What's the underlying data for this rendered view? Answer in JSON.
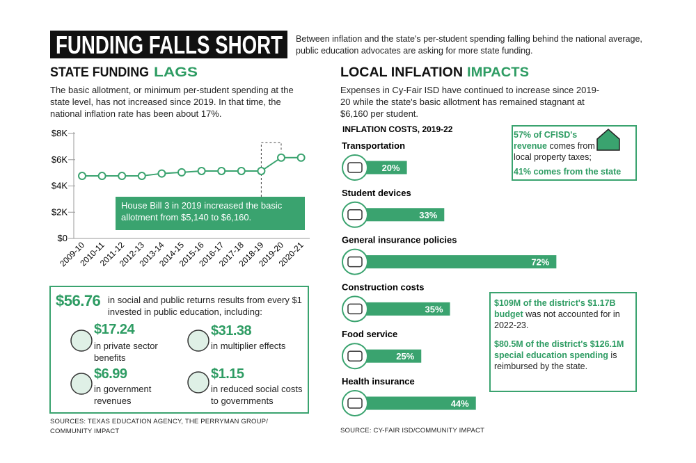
{
  "header": {
    "title": "FUNDING FALLS SHORT",
    "intro": "Between inflation and the state's per-student spending falling behind the national average, public education advocates are asking for more state funding."
  },
  "left": {
    "heading_main": "STATE FUNDING",
    "heading_accent": "LAGS",
    "text": "The basic allotment, or minimum per-student spending at the state level, has not increased since 2019. In that time, the national inflation rate has been about 17%."
  },
  "right": {
    "heading_main": "LOCAL INFLATION",
    "heading_accent": "IMPACTS",
    "text": "Expenses in Cy-Fair ISD have continued to increase since 2019-20 while the state's basic allotment has remained stagnant at $6,160 per student."
  },
  "chart_data": [
    {
      "type": "line",
      "categories": [
        "2009-10",
        "2010-11",
        "2011-12",
        "2012-13",
        "2013-14",
        "2014-15",
        "2015-16",
        "2016-17",
        "2017-18",
        "2018-19",
        "2019-20",
        "2020-21"
      ],
      "values": [
        4765,
        4765,
        4765,
        4765,
        4950,
        5040,
        5140,
        5140,
        5140,
        5140,
        6160,
        6160
      ],
      "color": "#3aa36f",
      "ylim": [
        0,
        8000
      ],
      "yticks": [
        {
          "value": 0,
          "label": "$0"
        },
        {
          "value": 2000,
          "label": "$2K"
        },
        {
          "value": 4000,
          "label": "$4K"
        },
        {
          "value": 6000,
          "label": "$6K"
        },
        {
          "value": 8000,
          "label": "$8K"
        }
      ],
      "annotation": "House Bill 3 in 2019 increased the basic allotment from $5,140 to $6,160."
    },
    {
      "type": "hbar",
      "title": "INFLATION COSTS, 2019-22",
      "categories": [
        "Transportation",
        "Student devices",
        "General insurance policies",
        "Construction costs",
        "Food service",
        "Health insurance"
      ],
      "values": [
        20,
        33,
        72,
        35,
        25,
        44
      ],
      "value_labels": [
        "20%",
        "33%",
        "72%",
        "35%",
        "25%",
        "44%"
      ],
      "color": "#3aa36f",
      "xlim": [
        0,
        100
      ]
    }
  ],
  "returns": {
    "headline_value": "$56.76",
    "headline_text": "in social and public returns results from every $1 invested in public education, including:",
    "items": [
      {
        "value": "$17.24",
        "text": "in private sector benefits"
      },
      {
        "value": "$31.38",
        "text": "in multiplier effects"
      },
      {
        "value": "$6.99",
        "text": "in government revenues"
      },
      {
        "value": "$1.15",
        "text": "in reduced social costs to governments"
      }
    ]
  },
  "callouts": [
    {
      "parts": [
        "57% of CFISD's revenue",
        "comes from local property taxes;",
        "41% comes from the state"
      ]
    },
    {
      "parts": [
        "$109M of the district's $1.17B budget",
        "was not accounted for in 2022-23.",
        "$80.5M of the district's $126.1M special education spending",
        "is reimbursed by the state."
      ]
    }
  ],
  "sources": [
    "SOURCES: TEXAS EDUCATION AGENCY, THE PERRYMAN GROUP/ COMMUNITY IMPACT",
    "SOURCE: CY-FAIR ISD/COMMUNITY IMPACT"
  ]
}
